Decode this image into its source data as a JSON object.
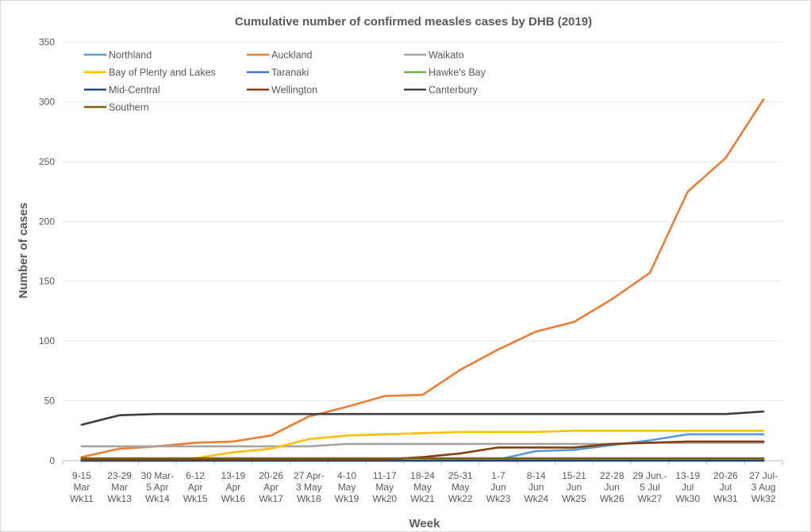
{
  "chart_data": {
    "type": "line",
    "title": "Cumulative number of confirmed measles cases by DHB (2019)",
    "xlabel": "Week",
    "ylabel": "Number of cases",
    "ylim": [
      0,
      350
    ],
    "yticks": [
      0,
      50,
      100,
      150,
      200,
      250,
      300,
      350
    ],
    "grid": true,
    "legend_position": "top-left",
    "categories": [
      [
        "9-15",
        "Mar",
        "Wk11"
      ],
      [
        "23-29",
        "Mar",
        "Wk13"
      ],
      [
        "30 Mar-",
        "5 Apr",
        "Wk14"
      ],
      [
        "6-12",
        "Apr",
        "Wk15"
      ],
      [
        "13-19",
        "Apr",
        "Wk16"
      ],
      [
        "20-26",
        "Apr",
        "Wk17"
      ],
      [
        "27 Apr-",
        "3 May",
        "Wk18"
      ],
      [
        "4-10",
        "May",
        "Wk19"
      ],
      [
        "11-17",
        "May",
        "Wk20"
      ],
      [
        "18-24",
        "May",
        "Wk21"
      ],
      [
        "25-31",
        "May",
        "Wk22"
      ],
      [
        "1-7",
        "Jun",
        "Wk23"
      ],
      [
        "8-14",
        "Jun",
        "Wk24"
      ],
      [
        "15-21",
        "Jun",
        "Wk25"
      ],
      [
        "22-28",
        "Jun",
        "Wk26"
      ],
      [
        "29 Jun.-",
        "5 Jul",
        "Wk27"
      ],
      [
        "13-19",
        "Jul",
        "Wk30"
      ],
      [
        "20-26",
        "Jul",
        "Wk31"
      ],
      [
        "27 Jul-",
        "3 Aug",
        "Wk32"
      ]
    ],
    "series": [
      {
        "name": "Northland",
        "color": "#5b9bd5",
        "values": [
          0,
          0,
          0,
          0,
          0,
          0,
          0,
          0,
          0,
          0,
          1,
          1,
          8,
          9,
          13,
          17,
          22,
          22,
          22
        ]
      },
      {
        "name": "Auckland",
        "color": "#ed7d31",
        "values": [
          3,
          10,
          12,
          15,
          16,
          21,
          37,
          45,
          54,
          55,
          76,
          93,
          108,
          116,
          135,
          157,
          225,
          253,
          302
        ]
      },
      {
        "name": "Waikato",
        "color": "#a5a5a5",
        "values": [
          12,
          12,
          12,
          12,
          12,
          12,
          12,
          14,
          14,
          14,
          14,
          14,
          14,
          14,
          14,
          15,
          15,
          15,
          15
        ]
      },
      {
        "name": "Bay of Plenty and Lakes",
        "color": "#ffc000",
        "values": [
          0,
          0,
          0,
          2,
          7,
          10,
          18,
          21,
          22,
          23,
          24,
          24,
          24,
          25,
          25,
          25,
          25,
          25,
          25
        ]
      },
      {
        "name": "Taranaki",
        "color": "#4472c4",
        "values": [
          0,
          0,
          0,
          0,
          0,
          0,
          0,
          0,
          0,
          0,
          0,
          0,
          0,
          0,
          0,
          0,
          0,
          0,
          0
        ]
      },
      {
        "name": "Hawke's Bay",
        "color": "#70ad47",
        "values": [
          0,
          0,
          0,
          0,
          0,
          0,
          0,
          0,
          0,
          0,
          1,
          1,
          1,
          1,
          1,
          1,
          1,
          1,
          1
        ]
      },
      {
        "name": "Mid-Central",
        "color": "#264478",
        "values": [
          0,
          0,
          0,
          0,
          0,
          0,
          0,
          0,
          0,
          0,
          0,
          0,
          0,
          0,
          0,
          0,
          0,
          0,
          0
        ]
      },
      {
        "name": "Wellington",
        "color": "#843c0c",
        "values": [
          1,
          1,
          1,
          1,
          1,
          1,
          1,
          1,
          1,
          3,
          6,
          11,
          11,
          11,
          14,
          15,
          16,
          16,
          16
        ]
      },
      {
        "name": "Canterbury",
        "color": "#404040",
        "values": [
          30,
          38,
          39,
          39,
          39,
          39,
          39,
          39,
          39,
          39,
          39,
          39,
          39,
          39,
          39,
          39,
          39,
          39,
          41
        ]
      },
      {
        "name": "Southern",
        "color": "#7f6000",
        "values": [
          2,
          2,
          2,
          2,
          2,
          2,
          2,
          2,
          2,
          2,
          2,
          2,
          2,
          2,
          2,
          2,
          2,
          2,
          2
        ]
      }
    ]
  }
}
